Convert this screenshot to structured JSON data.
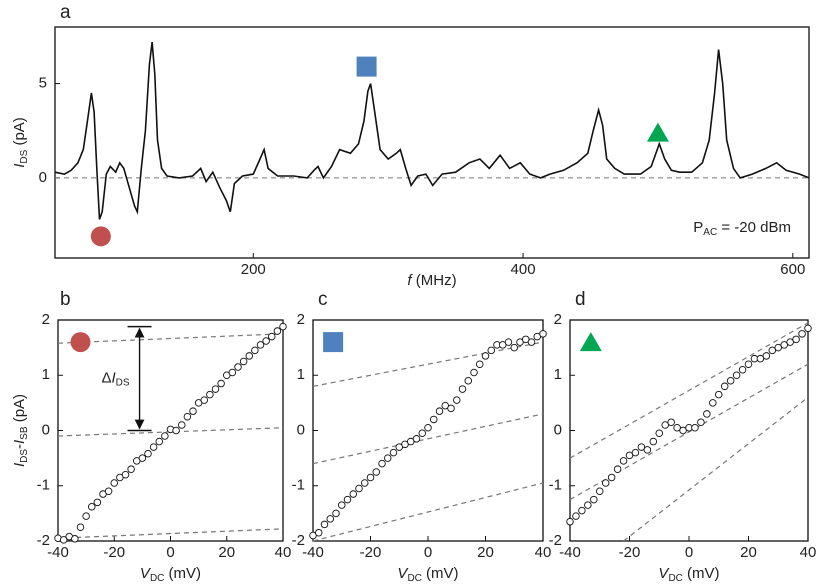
{
  "chart_data": [
    {
      "type": "line",
      "panel_label": "a",
      "color": "#111111",
      "xlabel": [
        {
          "text": "f",
          "italic": true
        },
        {
          "text": " (MHz)"
        }
      ],
      "ylabel": [
        {
          "text": "I",
          "italic": true
        },
        {
          "text": "DS",
          "sub": true
        },
        {
          "text": " (pA)"
        }
      ],
      "note": [
        {
          "text": "P"
        },
        {
          "text": "AC",
          "sub": true
        },
        {
          "text": " = -20 dBm"
        }
      ],
      "xlim": [
        53,
        612
      ],
      "ylim": [
        -4.25,
        8.0
      ],
      "xticks": [
        200,
        400,
        600
      ],
      "yticks": [
        0,
        5
      ],
      "reference_line": 0,
      "x": [
        53,
        60,
        65,
        70,
        74,
        77,
        80,
        82,
        84,
        86,
        88,
        91,
        94,
        98,
        101,
        104,
        108,
        112,
        114,
        117,
        120,
        123,
        125,
        127,
        129,
        132,
        136,
        145,
        155,
        161,
        165,
        170,
        175,
        180,
        183,
        186,
        192,
        200,
        205,
        208,
        211,
        218,
        230,
        240,
        245,
        248,
        252,
        258,
        264,
        272,
        278,
        282,
        285,
        287,
        290,
        294,
        300,
        306,
        309,
        313,
        317,
        322,
        328,
        333,
        340,
        350,
        360,
        368,
        375,
        383,
        390,
        398,
        405,
        413,
        420,
        430,
        440,
        448,
        452,
        456,
        459,
        462,
        468,
        475,
        487,
        495,
        501,
        505,
        510,
        516,
        525,
        533,
        538,
        542,
        545,
        548,
        551,
        556,
        561,
        570,
        580,
        588,
        595,
        605,
        612
      ],
      "y": [
        0.3,
        0.2,
        0.4,
        0.8,
        1.5,
        3.0,
        4.5,
        3.5,
        0.5,
        -2.2,
        -1.8,
        0.2,
        0.6,
        0.3,
        0.8,
        0.5,
        -0.5,
        -1.5,
        -1.8,
        0.5,
        2.5,
        6.0,
        7.2,
        5.5,
        2.0,
        0.5,
        0.1,
        0.0,
        0.1,
        0.5,
        -0.2,
        0.3,
        -0.5,
        -1.2,
        -1.8,
        -0.3,
        0.1,
        0.2,
        1.0,
        1.5,
        0.5,
        0.1,
        0.1,
        0.0,
        0.4,
        0.6,
        0.0,
        0.6,
        1.5,
        1.3,
        1.8,
        3.0,
        4.6,
        5.0,
        3.5,
        1.5,
        1.0,
        1.3,
        1.5,
        0.5,
        -0.4,
        0.1,
        0.2,
        -0.4,
        0.2,
        0.3,
        0.8,
        1.0,
        0.5,
        1.2,
        0.5,
        0.8,
        0.2,
        0.0,
        0.2,
        0.4,
        0.8,
        1.3,
        2.5,
        3.6,
        2.8,
        1.0,
        0.5,
        0.2,
        0.2,
        0.6,
        1.8,
        1.0,
        0.4,
        0.3,
        0.3,
        0.8,
        2.0,
        4.5,
        6.8,
        5.0,
        2.0,
        0.5,
        0.0,
        0.2,
        0.5,
        0.8,
        0.4,
        0.2,
        0.0
      ],
      "markers": [
        {
          "shape": "circle",
          "color": "#c0504d",
          "x": 87,
          "y": -3.1
        },
        {
          "shape": "square",
          "color": "#4f81bd",
          "x": 284,
          "y": 5.9
        },
        {
          "shape": "triangle",
          "color": "#00a651",
          "x": 500,
          "y": 2.4
        }
      ]
    },
    {
      "type": "scatter",
      "panel_label": "b",
      "xlabel": [
        {
          "text": "V",
          "italic": true
        },
        {
          "text": "DC",
          "sub": true
        },
        {
          "text": " (mV)"
        }
      ],
      "ylabel": [
        {
          "text": "I",
          "italic": true
        },
        {
          "text": "DS",
          "sub": true
        },
        {
          "text": "-"
        },
        {
          "text": "I",
          "italic": true
        },
        {
          "text": "SB",
          "sub": true
        },
        {
          "text": " (pA)"
        }
      ],
      "xlim": [
        -40,
        40
      ],
      "ylim": [
        -2,
        2
      ],
      "xticks": [
        -40,
        -20,
        0,
        20,
        40
      ],
      "yticks": [
        -2,
        -1,
        0,
        1,
        2
      ],
      "x": [
        -40,
        -38,
        -36,
        -34,
        -32,
        -30,
        -28,
        -26,
        -24,
        -22,
        -20,
        -18,
        -16,
        -14,
        -12,
        -10,
        -8,
        -6,
        -4,
        -2,
        0,
        2,
        4,
        6,
        8,
        10,
        12,
        14,
        16,
        18,
        20,
        22,
        24,
        26,
        28,
        30,
        32,
        34,
        36,
        38,
        40
      ],
      "y": [
        -1.95,
        -1.98,
        -1.92,
        -1.96,
        -1.75,
        -1.55,
        -1.38,
        -1.3,
        -1.15,
        -1.1,
        -0.95,
        -0.85,
        -0.8,
        -0.7,
        -0.55,
        -0.5,
        -0.42,
        -0.3,
        -0.2,
        -0.1,
        0.02,
        0.0,
        0.1,
        0.25,
        0.35,
        0.5,
        0.55,
        0.65,
        0.75,
        0.85,
        1.0,
        1.05,
        1.15,
        1.25,
        1.35,
        1.45,
        1.55,
        1.62,
        1.7,
        1.8,
        1.88
      ],
      "fit_lines": [
        {
          "x": [
            -40,
            40
          ],
          "y": [
            1.58,
            1.75
          ]
        },
        {
          "x": [
            -40,
            40
          ],
          "y": [
            -0.1,
            0.05
          ]
        },
        {
          "x": [
            -40,
            40
          ],
          "y": [
            -1.95,
            -1.78
          ]
        }
      ],
      "markers": [
        {
          "shape": "circle",
          "color": "#c0504d",
          "x": -32,
          "y": 1.6
        }
      ],
      "annotation": {
        "label": [
          {
            "text": "Δ"
          },
          {
            "text": "I",
            "italic": true
          },
          {
            "text": "DS",
            "sub": true
          }
        ],
        "x": -11,
        "y": [
          0,
          1.88
        ]
      }
    },
    {
      "type": "scatter",
      "panel_label": "c",
      "xlabel": [
        {
          "text": "V",
          "italic": true
        },
        {
          "text": "DC",
          "sub": true
        },
        {
          "text": " (mV)"
        }
      ],
      "xlim": [
        -40,
        40
      ],
      "ylim": [
        -2,
        2
      ],
      "xticks": [
        -40,
        -20,
        0,
        20,
        40
      ],
      "yticks": [
        -2,
        -1,
        0,
        1,
        2
      ],
      "x": [
        -40,
        -38,
        -36,
        -34,
        -32,
        -30,
        -28,
        -26,
        -24,
        -22,
        -20,
        -18,
        -16,
        -14,
        -12,
        -10,
        -8,
        -6,
        -4,
        -2,
        0,
        2,
        4,
        6,
        8,
        10,
        12,
        14,
        16,
        18,
        20,
        22,
        24,
        26,
        28,
        30,
        32,
        34,
        36,
        38,
        40
      ],
      "y": [
        -1.9,
        -1.85,
        -1.7,
        -1.6,
        -1.5,
        -1.35,
        -1.25,
        -1.15,
        -1.05,
        -0.95,
        -0.85,
        -0.75,
        -0.6,
        -0.5,
        -0.4,
        -0.3,
        -0.25,
        -0.2,
        -0.15,
        -0.05,
        0.05,
        0.2,
        0.35,
        0.45,
        0.4,
        0.55,
        0.75,
        0.9,
        1.05,
        1.2,
        1.35,
        1.45,
        1.55,
        1.55,
        1.6,
        1.5,
        1.6,
        1.65,
        1.6,
        1.7,
        1.75
      ],
      "fit_lines": [
        {
          "x": [
            -40,
            40
          ],
          "y": [
            0.8,
            1.6
          ]
        },
        {
          "x": [
            -40,
            40
          ],
          "y": [
            -0.6,
            0.3
          ]
        },
        {
          "x": [
            -40,
            40
          ],
          "y": [
            -2,
            -0.95
          ]
        }
      ],
      "markers": [
        {
          "shape": "square",
          "color": "#4f81bd",
          "x": -33,
          "y": 1.6
        }
      ]
    },
    {
      "type": "scatter",
      "panel_label": "d",
      "xlabel": [
        {
          "text": "V",
          "italic": true
        },
        {
          "text": "DC",
          "sub": true
        },
        {
          "text": " (mV)"
        }
      ],
      "xlim": [
        -40,
        40
      ],
      "ylim": [
        -2,
        2
      ],
      "xticks": [
        -40,
        -20,
        0,
        20,
        40
      ],
      "yticks": [
        -2,
        -1,
        0,
        1,
        2
      ],
      "x": [
        -40,
        -38,
        -36,
        -34,
        -32,
        -30,
        -28,
        -26,
        -24,
        -22,
        -20,
        -18,
        -16,
        -14,
        -12,
        -10,
        -8,
        -6,
        -4,
        -2,
        0,
        2,
        4,
        6,
        8,
        10,
        12,
        14,
        16,
        18,
        20,
        22,
        24,
        26,
        28,
        30,
        32,
        34,
        36,
        38,
        40
      ],
      "y": [
        -1.65,
        -1.55,
        -1.45,
        -1.35,
        -1.25,
        -1.1,
        -0.95,
        -0.85,
        -0.7,
        -0.55,
        -0.45,
        -0.4,
        -0.3,
        -0.35,
        -0.2,
        -0.05,
        0.1,
        0.15,
        0.05,
        0.0,
        0.05,
        0.05,
        0.15,
        0.3,
        0.5,
        0.65,
        0.8,
        0.9,
        1.0,
        1.1,
        1.2,
        1.3,
        1.3,
        1.35,
        1.45,
        1.5,
        1.55,
        1.6,
        1.65,
        1.75,
        1.85
      ],
      "fit_lines": [
        {
          "x": [
            -40,
            40
          ],
          "y": [
            -0.5,
            1.95
          ]
        },
        {
          "x": [
            -40,
            40
          ],
          "y": [
            -1.25,
            1.2
          ]
        },
        {
          "x": [
            -22,
            40
          ],
          "y": [
            -2,
            0.6
          ]
        }
      ],
      "markers": [
        {
          "shape": "triangle",
          "color": "#00a651",
          "x": -33,
          "y": 1.6
        }
      ]
    }
  ]
}
